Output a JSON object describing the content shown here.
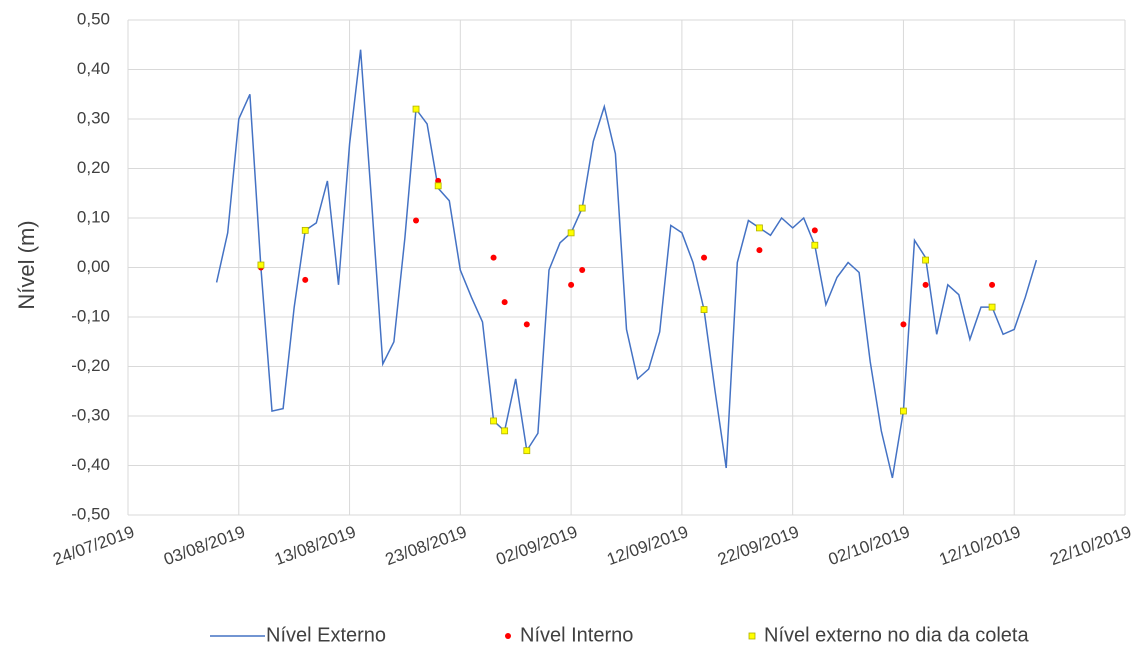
{
  "chart_data": {
    "type": "line",
    "y_label": "Nível (m)",
    "xlim": [
      "2019-07-24",
      "2019-10-22"
    ],
    "xticks": [
      {
        "value": "2019-07-24",
        "label": "24/07/2019"
      },
      {
        "value": "2019-08-03",
        "label": "03/08/2019"
      },
      {
        "value": "2019-08-13",
        "label": "13/08/2019"
      },
      {
        "value": "2019-08-23",
        "label": "23/08/2019"
      },
      {
        "value": "2019-09-02",
        "label": "02/09/2019"
      },
      {
        "value": "2019-09-12",
        "label": "12/09/2019"
      },
      {
        "value": "2019-09-22",
        "label": "22/09/2019"
      },
      {
        "value": "2019-10-02",
        "label": "02/10/2019"
      },
      {
        "value": "2019-10-12",
        "label": "12/10/2019"
      },
      {
        "value": "2019-10-22",
        "label": "22/10/2019"
      }
    ],
    "ylim": [
      -0.5,
      0.5
    ],
    "yticks": [
      {
        "value": 0.5,
        "label": "0,50"
      },
      {
        "value": 0.4,
        "label": "0,40"
      },
      {
        "value": 0.3,
        "label": "0,30"
      },
      {
        "value": 0.2,
        "label": "0,20"
      },
      {
        "value": 0.1,
        "label": "0,10"
      },
      {
        "value": 0,
        "label": "0,00"
      },
      {
        "value": -0.1,
        "label": "-0,10"
      },
      {
        "value": -0.2,
        "label": "-0,20"
      },
      {
        "value": -0.3,
        "label": "-0,30"
      },
      {
        "value": -0.4,
        "label": "-0,40"
      },
      {
        "value": -0.5,
        "label": "-0,50"
      }
    ],
    "grid": true,
    "legend": "bottom",
    "series": [
      {
        "name": "Nível Externo",
        "type": "line",
        "color": "#4472c4",
        "x": [
          "2019-08-01",
          "2019-08-02",
          "2019-08-03",
          "2019-08-04",
          "2019-08-05",
          "2019-08-06",
          "2019-08-07",
          "2019-08-08",
          "2019-08-09",
          "2019-08-10",
          "2019-08-11",
          "2019-08-12",
          "2019-08-13",
          "2019-08-14",
          "2019-08-15",
          "2019-08-16",
          "2019-08-17",
          "2019-08-18",
          "2019-08-19",
          "2019-08-20",
          "2019-08-21",
          "2019-08-22",
          "2019-08-23",
          "2019-08-24",
          "2019-08-25",
          "2019-08-26",
          "2019-08-27",
          "2019-08-28",
          "2019-08-29",
          "2019-08-30",
          "2019-08-31",
          "2019-09-01",
          "2019-09-02",
          "2019-09-03",
          "2019-09-04",
          "2019-09-05",
          "2019-09-06",
          "2019-09-07",
          "2019-09-08",
          "2019-09-09",
          "2019-09-10",
          "2019-09-11",
          "2019-09-12",
          "2019-09-13",
          "2019-09-14",
          "2019-09-15",
          "2019-09-16",
          "2019-09-17",
          "2019-09-18",
          "2019-09-19",
          "2019-09-20",
          "2019-09-21",
          "2019-09-22",
          "2019-09-23",
          "2019-09-24",
          "2019-09-25",
          "2019-09-26",
          "2019-09-27",
          "2019-09-28",
          "2019-09-29",
          "2019-09-30",
          "2019-10-01",
          "2019-10-02",
          "2019-10-03",
          "2019-10-04",
          "2019-10-05",
          "2019-10-06",
          "2019-10-07",
          "2019-10-08",
          "2019-10-09",
          "2019-10-10",
          "2019-10-11",
          "2019-10-12",
          "2019-10-13",
          "2019-10-14"
        ],
        "values": [
          -0.03,
          0.07,
          0.3,
          0.35,
          0.0,
          -0.29,
          -0.285,
          -0.08,
          0.075,
          0.09,
          0.175,
          -0.035,
          0.25,
          0.44,
          0.13,
          -0.195,
          -0.15,
          0.06,
          0.32,
          0.29,
          0.16,
          0.135,
          -0.005,
          -0.06,
          -0.11,
          -0.31,
          -0.33,
          -0.225,
          -0.37,
          -0.335,
          -0.005,
          0.05,
          0.07,
          0.12,
          0.255,
          0.325,
          0.23,
          -0.125,
          -0.225,
          -0.205,
          -0.13,
          0.085,
          0.07,
          0.01,
          -0.085,
          -0.25,
          -0.405,
          0.01,
          0.095,
          0.08,
          0.065,
          0.1,
          0.08,
          0.1,
          0.045,
          -0.075,
          -0.02,
          0.01,
          -0.01,
          -0.19,
          -0.33,
          -0.425,
          -0.29,
          0.055,
          0.02,
          -0.135,
          -0.035,
          -0.055,
          -0.145,
          -0.08,
          -0.08,
          -0.135,
          -0.125,
          -0.06,
          0.015
        ]
      },
      {
        "name": "Nível Interno",
        "type": "scatter",
        "marker": "circle",
        "color": "#ff0000",
        "x": [
          "2019-08-05",
          "2019-08-09",
          "2019-08-19",
          "2019-08-21",
          "2019-08-26",
          "2019-08-27",
          "2019-08-29",
          "2019-09-02",
          "2019-09-03",
          "2019-09-14",
          "2019-09-19",
          "2019-09-24",
          "2019-10-02",
          "2019-10-04",
          "2019-10-10"
        ],
        "values": [
          0.0,
          -0.025,
          0.095,
          0.175,
          0.02,
          -0.07,
          -0.115,
          -0.035,
          -0.005,
          0.02,
          0.035,
          0.075,
          -0.115,
          -0.035,
          -0.035
        ]
      },
      {
        "name": "Nível externo no dia da coleta",
        "type": "scatter",
        "marker": "square",
        "color": "#ffff00",
        "x": [
          "2019-08-05",
          "2019-08-09",
          "2019-08-19",
          "2019-08-21",
          "2019-08-26",
          "2019-08-27",
          "2019-08-29",
          "2019-09-02",
          "2019-09-03",
          "2019-09-14",
          "2019-09-19",
          "2019-09-24",
          "2019-10-02",
          "2019-10-04",
          "2019-10-10"
        ],
        "values": [
          0.005,
          0.075,
          0.32,
          0.165,
          -0.31,
          -0.33,
          -0.37,
          0.07,
          0.12,
          -0.085,
          0.08,
          0.045,
          -0.29,
          0.015,
          -0.08
        ]
      }
    ]
  }
}
